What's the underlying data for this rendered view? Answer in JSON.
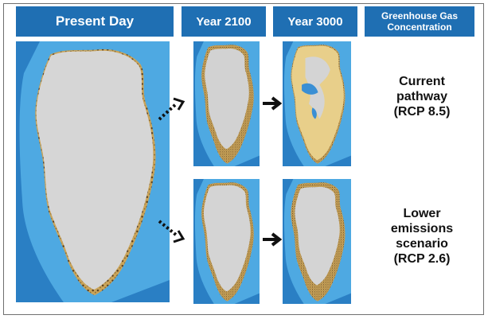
{
  "headers": {
    "present": "Present Day",
    "year_2100": "Year 2100",
    "year_3000": "Year 3000",
    "ghg_line1": "Greenhouse Gas",
    "ghg_line2": "Concentration"
  },
  "scenarios": [
    {
      "line1": "Current",
      "line2": "pathway",
      "line3": "(RCP 8.5)",
      "line4": ""
    },
    {
      "line1": "Lower",
      "line2": "emissions",
      "line3": "scenario",
      "line4": "(RCP 2.6)"
    }
  ],
  "colors": {
    "header_bg": "#1f6fb3",
    "ocean": "#2a7fc4",
    "shelf": "#4ea9e2",
    "ice": "#d4d4d4",
    "land": "#c9a45a",
    "exposed_land": "#e8cf8a"
  },
  "icons": [
    "dotted-arrow-icon",
    "solid-arrow-icon"
  ]
}
